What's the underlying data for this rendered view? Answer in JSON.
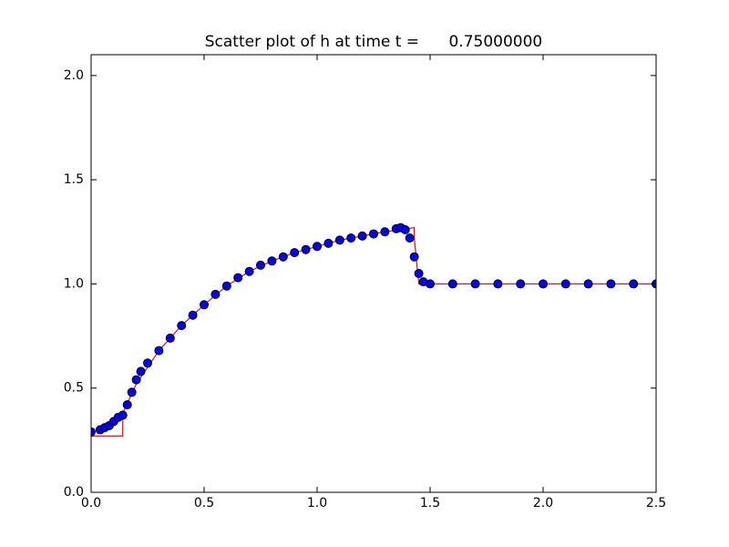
{
  "chart_data": {
    "type": "scatter",
    "title": "Scatter plot of h at time t =      0.75000000",
    "xlim": [
      0,
      2.5
    ],
    "ylim": [
      0,
      2.1
    ],
    "xticks": [
      {
        "value": 0,
        "label": "0.0"
      },
      {
        "value": 0.5,
        "label": "0.5"
      },
      {
        "value": 1,
        "label": "1.0"
      },
      {
        "value": 1.5,
        "label": "1.5"
      },
      {
        "value": 2,
        "label": "2.0"
      },
      {
        "value": 2.5,
        "label": "2.5"
      }
    ],
    "yticks": [
      {
        "value": 0,
        "label": "0.0"
      },
      {
        "value": 0.5,
        "label": "0.5"
      },
      {
        "value": 1,
        "label": "1.0"
      },
      {
        "value": 1.5,
        "label": "1.5"
      },
      {
        "value": 2,
        "label": "2.0"
      }
    ],
    "series": [
      {
        "type": "scatter",
        "color": "#0000ff",
        "edgecolor": "#000000",
        "x": [
          0,
          0.04,
          0.06,
          0.08,
          0.1,
          0.12,
          0.14,
          0.16,
          0.18,
          0.2,
          0.22,
          0.25,
          0.3,
          0.35,
          0.4,
          0.45,
          0.5,
          0.55,
          0.6,
          0.65,
          0.7,
          0.75,
          0.8,
          0.85,
          0.9,
          0.95,
          1.0,
          1.05,
          1.1,
          1.15,
          1.2,
          1.25,
          1.3,
          1.35,
          1.37,
          1.39,
          1.41,
          1.43,
          1.45,
          1.47,
          1.5,
          1.6,
          1.7,
          1.8,
          1.9,
          2.0,
          2.1,
          2.2,
          2.3,
          2.4,
          2.5
        ],
        "values": [
          0.29,
          0.3,
          0.31,
          0.32,
          0.34,
          0.36,
          0.37,
          0.42,
          0.48,
          0.54,
          0.58,
          0.62,
          0.68,
          0.74,
          0.8,
          0.85,
          0.9,
          0.95,
          0.99,
          1.03,
          1.06,
          1.09,
          1.11,
          1.13,
          1.15,
          1.165,
          1.18,
          1.195,
          1.21,
          1.22,
          1.23,
          1.24,
          1.25,
          1.265,
          1.27,
          1.26,
          1.22,
          1.13,
          1.05,
          1.01,
          1.0,
          1.0,
          1.0,
          1.0,
          1.0,
          1.0,
          1.0,
          1.0,
          1.0,
          1.0,
          1.0
        ]
      },
      {
        "type": "line",
        "color": "#ff0000",
        "x": [
          0,
          0.14,
          0.14,
          0.2,
          0.3,
          0.4,
          0.5,
          0.6,
          0.7,
          0.8,
          0.9,
          1.0,
          1.1,
          1.2,
          1.3,
          1.43,
          1.43,
          1.45,
          2.5
        ],
        "values": [
          0.27,
          0.27,
          0.38,
          0.52,
          0.68,
          0.8,
          0.9,
          0.99,
          1.06,
          1.11,
          1.15,
          1.18,
          1.21,
          1.23,
          1.25,
          1.27,
          1.22,
          1.0,
          1.0
        ]
      }
    ]
  }
}
